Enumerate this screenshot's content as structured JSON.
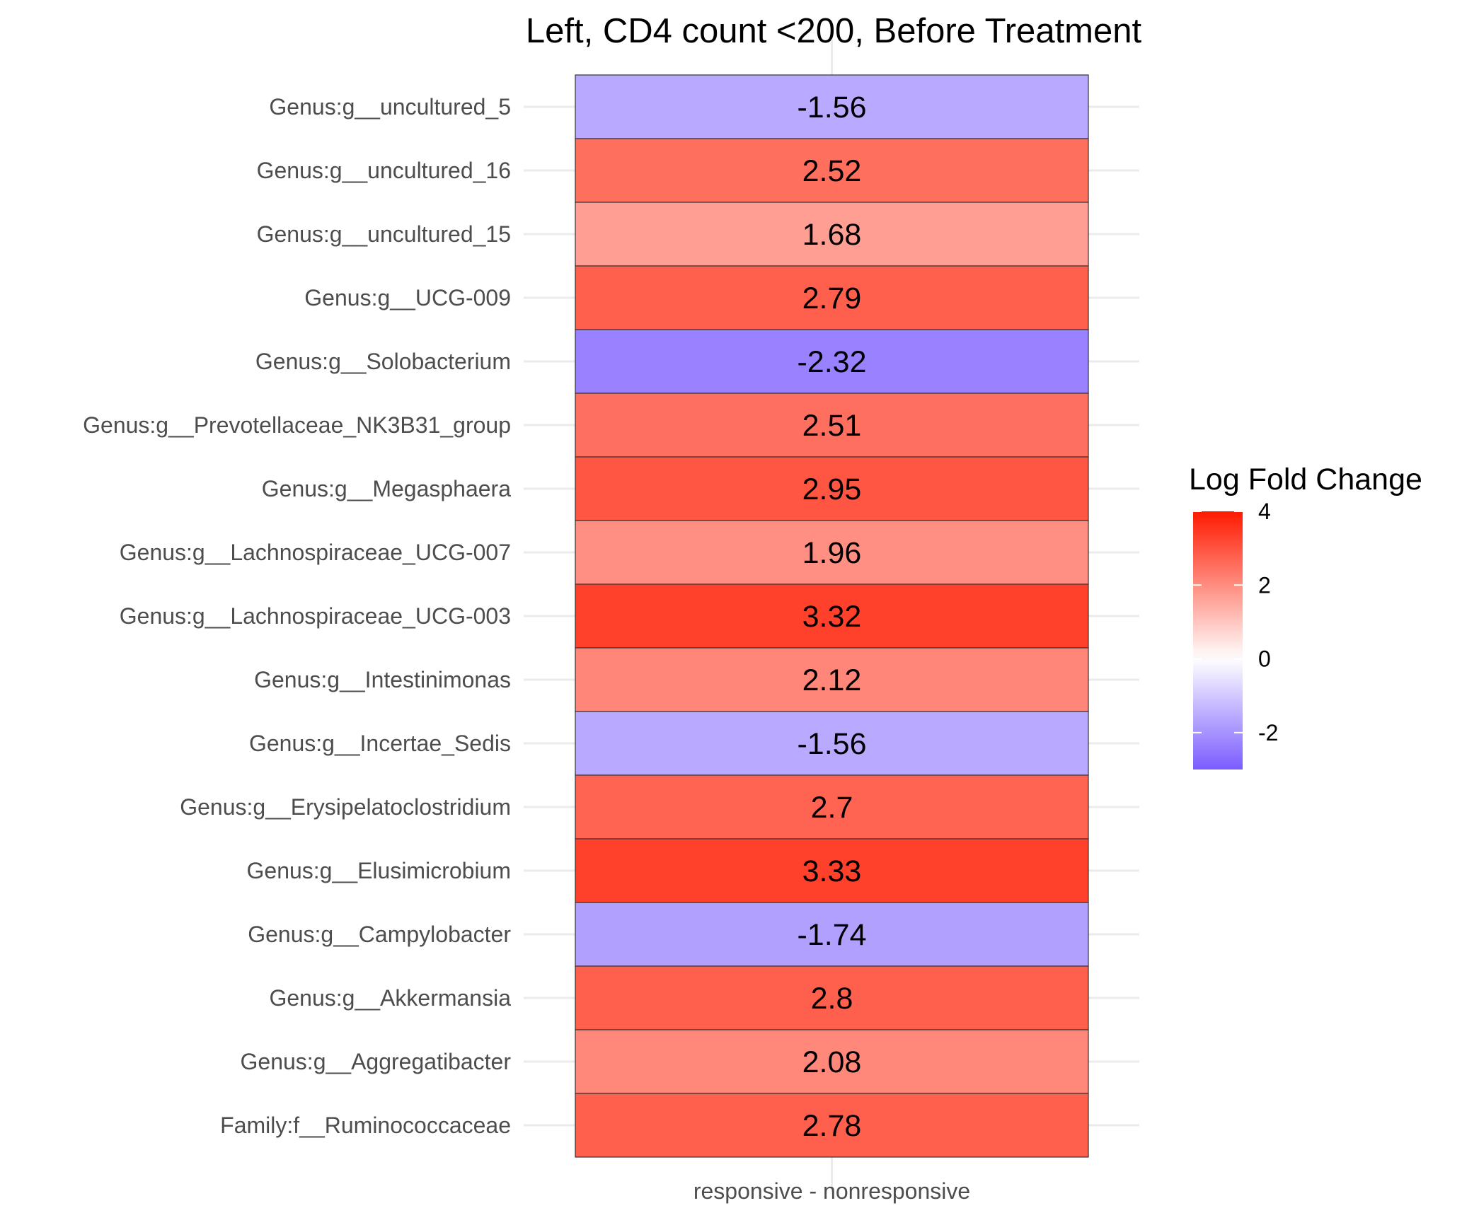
{
  "chart_data": {
    "type": "heatmap",
    "title": "Left, CD4 count <200, Before Treatment",
    "xlabel": "",
    "ylabel": "",
    "x_categories": [
      "responsive - nonresponsive"
    ],
    "y_categories": [
      "Genus:g__uncultured_5",
      "Genus:g__uncultured_16",
      "Genus:g__uncultured_15",
      "Genus:g__UCG-009",
      "Genus:g__Solobacterium",
      "Genus:g__Prevotellaceae_NK3B31_group",
      "Genus:g__Megasphaera",
      "Genus:g__Lachnospiraceae_UCG-007",
      "Genus:g__Lachnospiraceae_UCG-003",
      "Genus:g__Intestinimonas",
      "Genus:g__Incertae_Sedis",
      "Genus:g__Erysipelatoclostridium",
      "Genus:g__Elusimicrobium",
      "Genus:g__Campylobacter",
      "Genus:g__Akkermansia",
      "Genus:g__Aggregatibacter",
      "Family:f__Ruminococcaceae"
    ],
    "values": [
      -1.56,
      2.52,
      1.68,
      2.79,
      -2.32,
      2.51,
      2.95,
      1.96,
      3.32,
      2.12,
      -1.56,
      2.7,
      3.33,
      -1.74,
      2.8,
      2.08,
      2.78
    ],
    "value_labels": [
      "-1.56",
      "2.52",
      "1.68",
      "2.79",
      "-2.32",
      "2.51",
      "2.95",
      "1.96",
      "3.32",
      "2.12",
      "-1.56",
      "2.7",
      "3.33",
      "-1.74",
      "2.8",
      "2.08",
      "2.78"
    ],
    "legend": {
      "title": "Log Fold Change",
      "placement": "right",
      "range": [
        -3,
        4
      ],
      "ticks": [
        4,
        2,
        0,
        -2
      ],
      "tick_labels": [
        "4",
        "2",
        "0",
        "-2"
      ],
      "low_color": "#7b5cff",
      "mid_color": "#ffffff",
      "high_color": "#ff1a00",
      "midpoint": 0
    },
    "grid": true,
    "gridline_color": "#ebebeb",
    "cell_border_color": "#333333"
  }
}
